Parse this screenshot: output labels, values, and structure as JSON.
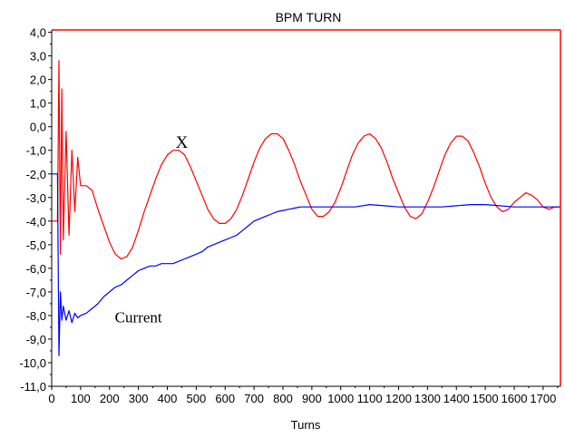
{
  "chart_data": {
    "type": "line",
    "title": "BPM TURN",
    "xlabel": "Turns",
    "ylabel": "",
    "xlim": [
      0,
      1760
    ],
    "ylim": [
      -11.0,
      4.1
    ],
    "grid": false,
    "legend": "none",
    "x_ticks": [
      0,
      100,
      200,
      300,
      400,
      500,
      600,
      700,
      800,
      900,
      1000,
      1100,
      1200,
      1300,
      1400,
      1500,
      1600,
      1700
    ],
    "x_tick_labels": [
      "0",
      "100",
      "200",
      "300",
      "400",
      "500",
      "600",
      "700",
      "800",
      "900",
      "1000",
      "1100",
      "1200",
      "1300",
      "1400",
      "1500",
      "1600",
      "1700"
    ],
    "y_ticks": [
      4,
      3,
      2,
      1,
      0,
      -1,
      -2,
      -3,
      -4,
      -5,
      -6,
      -7,
      -8,
      -9,
      -10,
      -11
    ],
    "y_tick_labels": [
      "4,0",
      "3,0",
      "2,0",
      "1,0",
      "0,0",
      "-1,0",
      "-2,0",
      "-3,0",
      "-4,0",
      "-5,0",
      "-6,0",
      "-7,0",
      "-8,0",
      "-9,0",
      "-10,0",
      "-11,0"
    ],
    "annotations": [
      {
        "text": "X",
        "x": 450,
        "y": -0.9
      },
      {
        "text": "Current",
        "x": 300,
        "y": -8.3
      }
    ],
    "series": [
      {
        "color": "#ff0000",
        "x": [
          0,
          20,
          25,
          30,
          35,
          40,
          50,
          60,
          70,
          80,
          90,
          100,
          120,
          140,
          160,
          180,
          200,
          220,
          240,
          260,
          280,
          300,
          320,
          340,
          360,
          380,
          400,
          420,
          440,
          460,
          480,
          500,
          520,
          540,
          560,
          580,
          600,
          620,
          640,
          660,
          680,
          700,
          720,
          740,
          760,
          780,
          800,
          820,
          840,
          860,
          880,
          900,
          920,
          940,
          960,
          980,
          1000,
          1020,
          1040,
          1060,
          1080,
          1100,
          1120,
          1140,
          1160,
          1180,
          1200,
          1220,
          1240,
          1260,
          1280,
          1300,
          1320,
          1340,
          1360,
          1380,
          1400,
          1420,
          1440,
          1460,
          1480,
          1500,
          1520,
          1540,
          1560,
          1580,
          1600,
          1620,
          1640,
          1660,
          1680,
          1700,
          1720,
          1740,
          1760
        ],
        "y": [
          -4.0,
          -4.0,
          2.8,
          -5.4,
          1.6,
          -4.8,
          -0.2,
          -4.6,
          -1.0,
          -3.6,
          -1.3,
          -2.5,
          -2.5,
          -2.7,
          -3.5,
          -4.2,
          -4.9,
          -5.4,
          -5.6,
          -5.5,
          -5.1,
          -4.4,
          -3.6,
          -2.9,
          -2.2,
          -1.6,
          -1.2,
          -1.0,
          -1.0,
          -1.2,
          -1.7,
          -2.3,
          -2.9,
          -3.5,
          -3.9,
          -4.1,
          -4.1,
          -3.9,
          -3.5,
          -2.9,
          -2.2,
          -1.5,
          -0.9,
          -0.5,
          -0.3,
          -0.3,
          -0.5,
          -1.0,
          -1.6,
          -2.3,
          -2.9,
          -3.5,
          -3.8,
          -3.8,
          -3.6,
          -3.2,
          -2.6,
          -1.9,
          -1.2,
          -0.7,
          -0.4,
          -0.3,
          -0.5,
          -0.9,
          -1.5,
          -2.2,
          -2.8,
          -3.4,
          -3.8,
          -3.9,
          -3.7,
          -3.2,
          -2.6,
          -1.9,
          -1.2,
          -0.7,
          -0.4,
          -0.4,
          -0.6,
          -1.1,
          -1.7,
          -2.4,
          -3.0,
          -3.4,
          -3.6,
          -3.5,
          -3.2,
          -3.0,
          -2.8,
          -2.9,
          -3.1,
          -3.4,
          -3.5,
          -3.4,
          -3.4
        ]
      },
      {
        "color": "#0000ff",
        "x": [
          0,
          20,
          25,
          30,
          35,
          40,
          50,
          60,
          70,
          80,
          90,
          100,
          120,
          140,
          160,
          180,
          200,
          220,
          240,
          260,
          280,
          300,
          320,
          340,
          360,
          380,
          400,
          420,
          440,
          460,
          480,
          500,
          520,
          540,
          560,
          580,
          600,
          620,
          640,
          660,
          680,
          700,
          720,
          740,
          760,
          780,
          800,
          820,
          840,
          860,
          880,
          900,
          920,
          940,
          960,
          980,
          1000,
          1050,
          1100,
          1150,
          1200,
          1250,
          1300,
          1350,
          1400,
          1450,
          1500,
          1550,
          1600,
          1650,
          1700,
          1760
        ],
        "y": [
          -2.0,
          -2.0,
          -9.7,
          -7.0,
          -8.2,
          -7.6,
          -8.2,
          -7.8,
          -8.3,
          -7.9,
          -8.1,
          -8.0,
          -7.9,
          -7.7,
          -7.5,
          -7.2,
          -7.0,
          -6.8,
          -6.7,
          -6.5,
          -6.3,
          -6.1,
          -6.0,
          -5.9,
          -5.9,
          -5.8,
          -5.8,
          -5.8,
          -5.7,
          -5.6,
          -5.5,
          -5.4,
          -5.3,
          -5.1,
          -5.0,
          -4.9,
          -4.8,
          -4.7,
          -4.6,
          -4.4,
          -4.2,
          -4.0,
          -3.9,
          -3.8,
          -3.7,
          -3.6,
          -3.55,
          -3.5,
          -3.45,
          -3.4,
          -3.4,
          -3.4,
          -3.4,
          -3.4,
          -3.4,
          -3.4,
          -3.4,
          -3.4,
          -3.3,
          -3.35,
          -3.4,
          -3.4,
          -3.4,
          -3.4,
          -3.35,
          -3.3,
          -3.3,
          -3.35,
          -3.4,
          -3.4,
          -3.4,
          -3.4
        ]
      }
    ]
  }
}
